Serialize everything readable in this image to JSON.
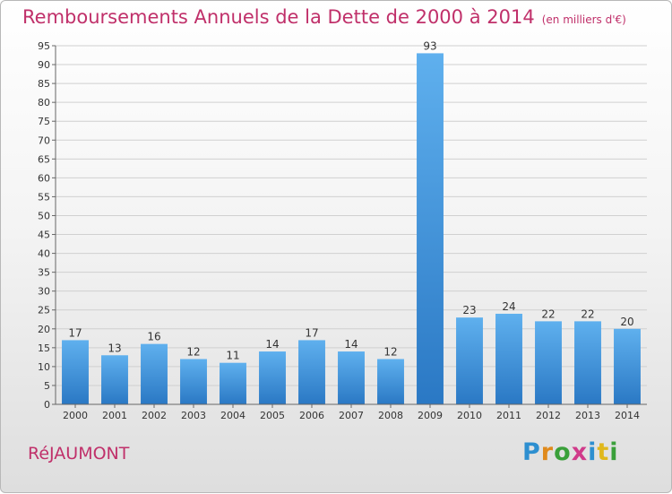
{
  "chart_data": {
    "type": "bar",
    "title": "Remboursements Annuels de la Dette de 2000 à 2014",
    "unit_note": "(en milliers d'€)",
    "categories": [
      "2000",
      "2001",
      "2002",
      "2003",
      "2004",
      "2005",
      "2006",
      "2007",
      "2008",
      "2009",
      "2010",
      "2011",
      "2012",
      "2013",
      "2014"
    ],
    "values": [
      17,
      13,
      16,
      12,
      11,
      14,
      17,
      14,
      12,
      93,
      23,
      24,
      22,
      22,
      20
    ],
    "ylim": [
      0,
      95
    ],
    "yticks": [
      0,
      5,
      10,
      15,
      20,
      25,
      30,
      35,
      40,
      45,
      50,
      55,
      60,
      65,
      70,
      75,
      80,
      85,
      90,
      95
    ],
    "grid": true,
    "bar_color": "#3d8fd6"
  },
  "footer": {
    "town": "RéJAUMONT",
    "logo": [
      "P",
      "r",
      "o",
      "x",
      "i",
      "t",
      "i"
    ],
    "logo_colors": [
      "#2d8fd0",
      "#e08a1c",
      "#3aa03a",
      "#d03a8a",
      "#2d8fd0",
      "#e0b81c",
      "#3aa03a"
    ]
  }
}
